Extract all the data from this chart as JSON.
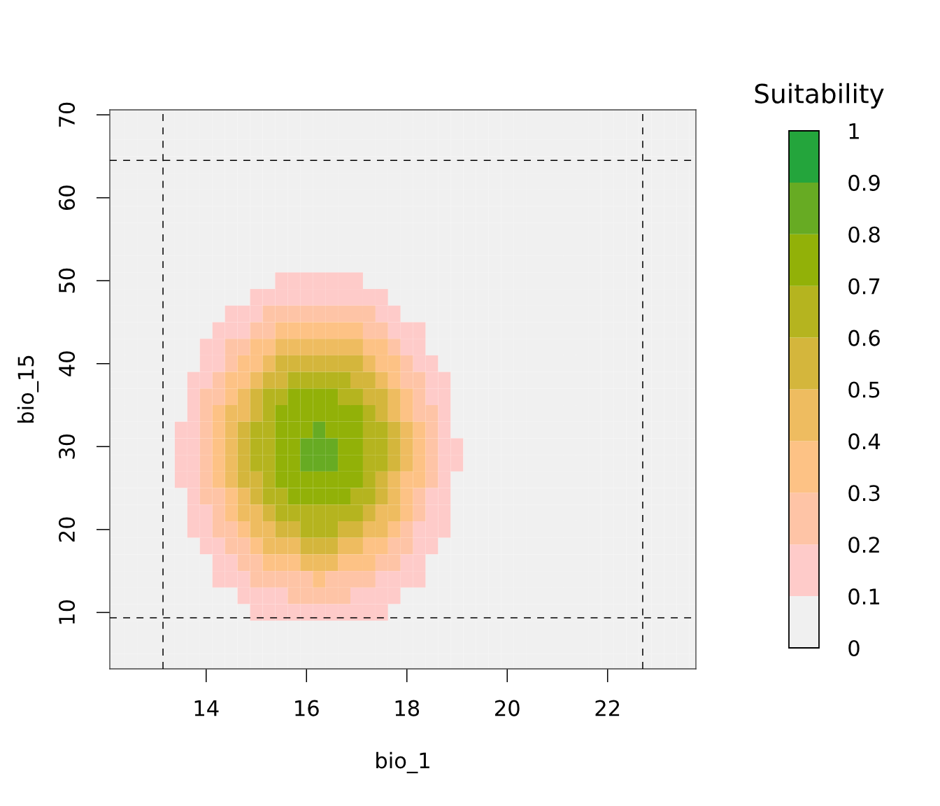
{
  "chart_data": {
    "type": "heatmap",
    "xlabel": "bio_1",
    "ylabel": "bio_15",
    "clabel": "Suitability",
    "xlim": [
      12.08,
      23.76
    ],
    "ylim": [
      3.2,
      70.6
    ],
    "xticks": [
      14,
      16,
      18,
      20,
      22
    ],
    "yticks": [
      10,
      20,
      30,
      40,
      50,
      60,
      70
    ],
    "clim": [
      0,
      1
    ],
    "cticks": [
      0,
      0.1,
      0.2,
      0.3,
      0.4,
      0.5,
      0.6,
      0.7,
      0.8,
      0.9,
      1
    ],
    "colors": [
      "#f0f0f0",
      "#fecbc9",
      "#fec4a6",
      "#fdc285",
      "#eebc60",
      "#d4b63c",
      "#b5b41f",
      "#92b108",
      "#67ab23",
      "#24a53c"
    ],
    "ref_lines": [
      {
        "axis": "x",
        "value": 13.14,
        "line_style": "dashed",
        "color": "#000000"
      },
      {
        "axis": "x",
        "value": 22.7,
        "line_style": "dashed",
        "color": "#000000"
      },
      {
        "axis": "y",
        "value": 64.5,
        "line_style": "dashed",
        "color": "#000000"
      },
      {
        "axis": "y",
        "value": 9.35,
        "line_style": "dashed",
        "color": "#000000"
      }
    ],
    "x": [
      12.25,
      12.5,
      12.75,
      13.0,
      13.25,
      13.5,
      13.75,
      14.0,
      14.25,
      14.5,
      14.75,
      15.0,
      15.25,
      15.5,
      15.75,
      16.0,
      16.25,
      16.5,
      16.75,
      17.0,
      17.25,
      17.5,
      17.75,
      18.0,
      18.25,
      18.5,
      18.75,
      19.0,
      19.25,
      19.5,
      19.75,
      20.0,
      20.25,
      20.5,
      20.75,
      21.0,
      21.25,
      21.5,
      21.75,
      22.0,
      22.25,
      22.5,
      22.75,
      23.0,
      23.25,
      23.5,
      23.75
    ],
    "y": [
      70,
      68,
      66,
      64,
      62,
      60,
      58,
      56,
      54,
      52,
      50,
      48,
      46,
      44,
      42,
      40,
      38,
      36,
      34,
      32,
      30,
      28,
      26,
      24,
      22,
      20,
      18,
      16,
      14,
      12,
      10,
      8,
      6,
      4
    ],
    "cells": [
      [
        0.05,
        0.05,
        0.05,
        0.05,
        0.05,
        0.05,
        0.05,
        0.05,
        0.05,
        0.05,
        0.05,
        0.05,
        0.05,
        0.05,
        0.05,
        0.05,
        0.05,
        0.05,
        0.05,
        0.05,
        0.05,
        0.05,
        0.05,
        0.05,
        0.05,
        0.05,
        0.05,
        0.05,
        0.05,
        0.05,
        0.05,
        0.05,
        0.05,
        0.05,
        0.05,
        0.05,
        0.05,
        0.05,
        0.05,
        0.05,
        0.05,
        0.05,
        0.05,
        0.05,
        0.05,
        0.05,
        0.05
      ],
      [
        0.05,
        0.05,
        0.05,
        0.05,
        0.05,
        0.05,
        0.05,
        0.05,
        0.05,
        0.05,
        0.05,
        0.05,
        0.05,
        0.05,
        0.05,
        0.05,
        0.05,
        0.05,
        0.05,
        0.05,
        0.05,
        0.05,
        0.05,
        0.05,
        0.05,
        0.05,
        0.05,
        0.05,
        0.05,
        0.05,
        0.05,
        0.05,
        0.05,
        0.05,
        0.05,
        0.05,
        0.05,
        0.05,
        0.05,
        0.05,
        0.05,
        0.05,
        0.05,
        0.05,
        0.05,
        0.05,
        0.05
      ],
      [
        0.05,
        0.05,
        0.05,
        0.05,
        0.05,
        0.05,
        0.05,
        0.05,
        0.05,
        0.05,
        0.05,
        0.05,
        0.05,
        0.05,
        0.05,
        0.05,
        0.05,
        0.05,
        0.05,
        0.05,
        0.05,
        0.05,
        0.05,
        0.05,
        0.05,
        0.05,
        0.05,
        0.05,
        0.05,
        0.05,
        0.05,
        0.05,
        0.05,
        0.05,
        0.05,
        0.05,
        0.05,
        0.05,
        0.05,
        0.05,
        0.05,
        0.05,
        0.05,
        0.05,
        0.05,
        0.05,
        0.05
      ],
      [
        0.05,
        0.05,
        0.05,
        0.05,
        0.05,
        0.05,
        0.05,
        0.05,
        0.05,
        0.05,
        0.05,
        0.05,
        0.05,
        0.05,
        0.05,
        0.05,
        0.05,
        0.05,
        0.05,
        0.05,
        0.05,
        0.05,
        0.05,
        0.05,
        0.05,
        0.05,
        0.05,
        0.05,
        0.05,
        0.05,
        0.05,
        0.05,
        0.05,
        0.05,
        0.05,
        0.05,
        0.05,
        0.05,
        0.05,
        0.05,
        0.05,
        0.05,
        0.05,
        0.05,
        0.05,
        0.05,
        0.05
      ],
      [
        0.05,
        0.05,
        0.05,
        0.05,
        0.05,
        0.05,
        0.05,
        0.05,
        0.05,
        0.05,
        0.05,
        0.05,
        0.05,
        0.05,
        0.05,
        0.05,
        0.05,
        0.05,
        0.05,
        0.05,
        0.05,
        0.05,
        0.05,
        0.05,
        0.05,
        0.05,
        0.05,
        0.05,
        0.05,
        0.05,
        0.05,
        0.05,
        0.05,
        0.05,
        0.05,
        0.05,
        0.05,
        0.05,
        0.05,
        0.05,
        0.05,
        0.05,
        0.05,
        0.05,
        0.05,
        0.05,
        0.05
      ],
      [
        0.05,
        0.05,
        0.05,
        0.05,
        0.05,
        0.05,
        0.05,
        0.05,
        0.05,
        0.05,
        0.05,
        0.05,
        0.05,
        0.05,
        0.05,
        0.05,
        0.05,
        0.05,
        0.05,
        0.05,
        0.05,
        0.05,
        0.05,
        0.05,
        0.05,
        0.05,
        0.05,
        0.05,
        0.05,
        0.05,
        0.05,
        0.05,
        0.05,
        0.05,
        0.05,
        0.05,
        0.05,
        0.05,
        0.05,
        0.05,
        0.05,
        0.05,
        0.05,
        0.05,
        0.05,
        0.05,
        0.05
      ],
      [
        0.05,
        0.05,
        0.05,
        0.05,
        0.05,
        0.05,
        0.05,
        0.05,
        0.05,
        0.05,
        0.05,
        0.05,
        0.05,
        0.05,
        0.05,
        0.05,
        0.05,
        0.05,
        0.05,
        0.05,
        0.05,
        0.05,
        0.05,
        0.05,
        0.05,
        0.05,
        0.05,
        0.05,
        0.05,
        0.05,
        0.05,
        0.05,
        0.05,
        0.05,
        0.05,
        0.05,
        0.05,
        0.05,
        0.05,
        0.05,
        0.05,
        0.05,
        0.05,
        0.05,
        0.05,
        0.05,
        0.05
      ],
      [
        0.05,
        0.05,
        0.05,
        0.05,
        0.05,
        0.05,
        0.05,
        0.05,
        0.05,
        0.05,
        0.05,
        0.05,
        0.05,
        0.05,
        0.05,
        0.05,
        0.05,
        0.05,
        0.05,
        0.05,
        0.05,
        0.05,
        0.05,
        0.05,
        0.05,
        0.05,
        0.05,
        0.05,
        0.05,
        0.05,
        0.05,
        0.05,
        0.05,
        0.05,
        0.05,
        0.05,
        0.05,
        0.05,
        0.05,
        0.05,
        0.05,
        0.05,
        0.05,
        0.05,
        0.05,
        0.05,
        0.05
      ],
      [
        0.05,
        0.05,
        0.05,
        0.05,
        0.05,
        0.05,
        0.05,
        0.05,
        0.05,
        0.05,
        0.05,
        0.05,
        0.05,
        0.05,
        0.05,
        0.05,
        0.05,
        0.05,
        0.05,
        0.05,
        0.05,
        0.05,
        0.05,
        0.05,
        0.05,
        0.05,
        0.05,
        0.05,
        0.05,
        0.05,
        0.05,
        0.05,
        0.05,
        0.05,
        0.05,
        0.05,
        0.05,
        0.05,
        0.05,
        0.05,
        0.05,
        0.05,
        0.05,
        0.05,
        0.05,
        0.05,
        0.05
      ],
      [
        0.05,
        0.05,
        0.05,
        0.05,
        0.05,
        0.05,
        0.05,
        0.05,
        0.05,
        0.05,
        0.05,
        0.05,
        0.05,
        0.05,
        0.05,
        0.05,
        0.05,
        0.05,
        0.05,
        0.05,
        0.05,
        0.05,
        0.05,
        0.05,
        0.05,
        0.05,
        0.05,
        0.05,
        0.05,
        0.05,
        0.05,
        0.05,
        0.05,
        0.05,
        0.05,
        0.05,
        0.05,
        0.05,
        0.05,
        0.05,
        0.05,
        0.05,
        0.05,
        0.05,
        0.05,
        0.05,
        0.05
      ],
      [
        0.05,
        0.05,
        0.05,
        0.05,
        0.05,
        0.05,
        0.05,
        0.05,
        0.05,
        0.05,
        0.05,
        0.05,
        0.05,
        0.15,
        0.15,
        0.15,
        0.15,
        0.15,
        0.15,
        0.15,
        0.05,
        0.05,
        0.05,
        0.05,
        0.05,
        0.05,
        0.05,
        0.05,
        0.05,
        0.05,
        0.05,
        0.05,
        0.05,
        0.05,
        0.05,
        0.05,
        0.05,
        0.05,
        0.05,
        0.05,
        0.05,
        0.05,
        0.05,
        0.05,
        0.05,
        0.05,
        0.05
      ],
      [
        0.05,
        0.05,
        0.05,
        0.05,
        0.05,
        0.05,
        0.05,
        0.05,
        0.05,
        0.05,
        0.05,
        0.15,
        0.15,
        0.15,
        0.15,
        0.15,
        0.15,
        0.15,
        0.15,
        0.15,
        0.15,
        0.15,
        0.05,
        0.05,
        0.05,
        0.05,
        0.05,
        0.05,
        0.05,
        0.05,
        0.05,
        0.05,
        0.05,
        0.05,
        0.05,
        0.05,
        0.05,
        0.05,
        0.05,
        0.05,
        0.05,
        0.05,
        0.05,
        0.05,
        0.05,
        0.05,
        0.05
      ],
      [
        0.05,
        0.05,
        0.05,
        0.05,
        0.05,
        0.05,
        0.05,
        0.05,
        0.05,
        0.15,
        0.15,
        0.15,
        0.25,
        0.25,
        0.25,
        0.25,
        0.25,
        0.25,
        0.25,
        0.25,
        0.25,
        0.15,
        0.15,
        0.05,
        0.05,
        0.05,
        0.05,
        0.05,
        0.05,
        0.05,
        0.05,
        0.05,
        0.05,
        0.05,
        0.05,
        0.05,
        0.05,
        0.05,
        0.05,
        0.05,
        0.05,
        0.05,
        0.05,
        0.05,
        0.05,
        0.05,
        0.05
      ],
      [
        0.05,
        0.05,
        0.05,
        0.05,
        0.05,
        0.05,
        0.05,
        0.05,
        0.15,
        0.15,
        0.15,
        0.25,
        0.25,
        0.35,
        0.35,
        0.35,
        0.35,
        0.35,
        0.35,
        0.35,
        0.25,
        0.25,
        0.15,
        0.15,
        0.15,
        0.05,
        0.05,
        0.05,
        0.05,
        0.05,
        0.05,
        0.05,
        0.05,
        0.05,
        0.05,
        0.05,
        0.05,
        0.05,
        0.05,
        0.05,
        0.05,
        0.05,
        0.05,
        0.05,
        0.05,
        0.05,
        0.05
      ],
      [
        0.05,
        0.05,
        0.05,
        0.05,
        0.05,
        0.05,
        0.05,
        0.15,
        0.15,
        0.25,
        0.25,
        0.35,
        0.35,
        0.45,
        0.45,
        0.45,
        0.45,
        0.45,
        0.45,
        0.45,
        0.35,
        0.35,
        0.25,
        0.15,
        0.15,
        0.05,
        0.05,
        0.05,
        0.05,
        0.05,
        0.05,
        0.05,
        0.05,
        0.05,
        0.05,
        0.05,
        0.05,
        0.05,
        0.05,
        0.05,
        0.05,
        0.05,
        0.05,
        0.05,
        0.05,
        0.05,
        0.05
      ],
      [
        0.05,
        0.05,
        0.05,
        0.05,
        0.05,
        0.05,
        0.05,
        0.15,
        0.15,
        0.25,
        0.35,
        0.35,
        0.45,
        0.55,
        0.55,
        0.55,
        0.55,
        0.55,
        0.55,
        0.55,
        0.45,
        0.35,
        0.35,
        0.25,
        0.15,
        0.15,
        0.05,
        0.05,
        0.05,
        0.05,
        0.05,
        0.05,
        0.05,
        0.05,
        0.05,
        0.05,
        0.05,
        0.05,
        0.05,
        0.05,
        0.05,
        0.05,
        0.05,
        0.05,
        0.05,
        0.05,
        0.05
      ],
      [
        0.05,
        0.05,
        0.05,
        0.05,
        0.05,
        0.05,
        0.15,
        0.15,
        0.25,
        0.35,
        0.35,
        0.45,
        0.55,
        0.55,
        0.65,
        0.65,
        0.65,
        0.65,
        0.65,
        0.55,
        0.55,
        0.45,
        0.35,
        0.25,
        0.25,
        0.15,
        0.15,
        0.05,
        0.05,
        0.05,
        0.05,
        0.05,
        0.05,
        0.05,
        0.05,
        0.05,
        0.05,
        0.05,
        0.05,
        0.05,
        0.05,
        0.05,
        0.05,
        0.05,
        0.05,
        0.05,
        0.05
      ],
      [
        0.05,
        0.05,
        0.05,
        0.05,
        0.05,
        0.05,
        0.15,
        0.25,
        0.25,
        0.35,
        0.45,
        0.55,
        0.65,
        0.65,
        0.75,
        0.75,
        0.75,
        0.75,
        0.65,
        0.65,
        0.55,
        0.55,
        0.45,
        0.35,
        0.25,
        0.15,
        0.15,
        0.05,
        0.05,
        0.05,
        0.05,
        0.05,
        0.05,
        0.05,
        0.05,
        0.05,
        0.05,
        0.05,
        0.05,
        0.05,
        0.05,
        0.05,
        0.05,
        0.05,
        0.05,
        0.05,
        0.05
      ],
      [
        0.05,
        0.05,
        0.05,
        0.05,
        0.05,
        0.05,
        0.15,
        0.25,
        0.35,
        0.45,
        0.45,
        0.55,
        0.65,
        0.75,
        0.75,
        0.75,
        0.75,
        0.75,
        0.75,
        0.75,
        0.65,
        0.55,
        0.45,
        0.35,
        0.25,
        0.25,
        0.15,
        0.05,
        0.05,
        0.05,
        0.05,
        0.05,
        0.05,
        0.05,
        0.05,
        0.05,
        0.05,
        0.05,
        0.05,
        0.05,
        0.05,
        0.05,
        0.05,
        0.05,
        0.05,
        0.05,
        0.05
      ],
      [
        0.05,
        0.05,
        0.05,
        0.05,
        0.05,
        0.15,
        0.15,
        0.25,
        0.35,
        0.45,
        0.55,
        0.65,
        0.65,
        0.75,
        0.75,
        0.75,
        0.85,
        0.75,
        0.75,
        0.75,
        0.65,
        0.65,
        0.55,
        0.45,
        0.35,
        0.25,
        0.15,
        0.05,
        0.05,
        0.05,
        0.05,
        0.05,
        0.05,
        0.05,
        0.05,
        0.05,
        0.05,
        0.05,
        0.05,
        0.05,
        0.05,
        0.05,
        0.05,
        0.05,
        0.05,
        0.05,
        0.05
      ],
      [
        0.05,
        0.05,
        0.05,
        0.05,
        0.05,
        0.15,
        0.15,
        0.25,
        0.35,
        0.45,
        0.55,
        0.65,
        0.65,
        0.75,
        0.75,
        0.85,
        0.85,
        0.85,
        0.75,
        0.75,
        0.65,
        0.65,
        0.55,
        0.45,
        0.35,
        0.25,
        0.15,
        0.15,
        0.05,
        0.05,
        0.05,
        0.05,
        0.05,
        0.05,
        0.05,
        0.05,
        0.05,
        0.05,
        0.05,
        0.05,
        0.05,
        0.05,
        0.05,
        0.05,
        0.05,
        0.05,
        0.05
      ],
      [
        0.05,
        0.05,
        0.05,
        0.05,
        0.05,
        0.15,
        0.15,
        0.25,
        0.35,
        0.45,
        0.55,
        0.65,
        0.65,
        0.75,
        0.75,
        0.85,
        0.85,
        0.85,
        0.75,
        0.75,
        0.65,
        0.65,
        0.55,
        0.45,
        0.35,
        0.25,
        0.15,
        0.15,
        0.05,
        0.05,
        0.05,
        0.05,
        0.05,
        0.05,
        0.05,
        0.05,
        0.05,
        0.05,
        0.05,
        0.05,
        0.05,
        0.05,
        0.05,
        0.05,
        0.05,
        0.05,
        0.05
      ],
      [
        0.05,
        0.05,
        0.05,
        0.05,
        0.05,
        0.15,
        0.15,
        0.25,
        0.35,
        0.45,
        0.55,
        0.55,
        0.65,
        0.75,
        0.75,
        0.75,
        0.75,
        0.75,
        0.75,
        0.75,
        0.65,
        0.55,
        0.45,
        0.35,
        0.35,
        0.25,
        0.15,
        0.05,
        0.05,
        0.05,
        0.05,
        0.05,
        0.05,
        0.05,
        0.05,
        0.05,
        0.05,
        0.05,
        0.05,
        0.05,
        0.05,
        0.05,
        0.05,
        0.05,
        0.05,
        0.05,
        0.05
      ],
      [
        0.05,
        0.05,
        0.05,
        0.05,
        0.05,
        0.05,
        0.15,
        0.25,
        0.25,
        0.35,
        0.45,
        0.55,
        0.65,
        0.65,
        0.75,
        0.75,
        0.75,
        0.75,
        0.75,
        0.65,
        0.65,
        0.55,
        0.45,
        0.35,
        0.25,
        0.15,
        0.15,
        0.05,
        0.05,
        0.05,
        0.05,
        0.05,
        0.05,
        0.05,
        0.05,
        0.05,
        0.05,
        0.05,
        0.05,
        0.05,
        0.05,
        0.05,
        0.05,
        0.05,
        0.05,
        0.05,
        0.05
      ],
      [
        0.05,
        0.05,
        0.05,
        0.05,
        0.05,
        0.05,
        0.15,
        0.15,
        0.25,
        0.35,
        0.45,
        0.45,
        0.55,
        0.65,
        0.65,
        0.65,
        0.65,
        0.65,
        0.65,
        0.65,
        0.55,
        0.45,
        0.45,
        0.35,
        0.25,
        0.15,
        0.15,
        0.05,
        0.05,
        0.05,
        0.05,
        0.05,
        0.05,
        0.05,
        0.05,
        0.05,
        0.05,
        0.05,
        0.05,
        0.05,
        0.05,
        0.05,
        0.05,
        0.05,
        0.05,
        0.05,
        0.05
      ],
      [
        0.05,
        0.05,
        0.05,
        0.05,
        0.05,
        0.05,
        0.15,
        0.15,
        0.25,
        0.25,
        0.35,
        0.45,
        0.45,
        0.55,
        0.55,
        0.65,
        0.65,
        0.65,
        0.55,
        0.55,
        0.45,
        0.45,
        0.35,
        0.25,
        0.15,
        0.15,
        0.15,
        0.05,
        0.05,
        0.05,
        0.05,
        0.05,
        0.05,
        0.05,
        0.05,
        0.05,
        0.05,
        0.05,
        0.05,
        0.05,
        0.05,
        0.05,
        0.05,
        0.05,
        0.05,
        0.05,
        0.05
      ],
      [
        0.05,
        0.05,
        0.05,
        0.05,
        0.05,
        0.05,
        0.05,
        0.15,
        0.15,
        0.25,
        0.25,
        0.35,
        0.45,
        0.45,
        0.45,
        0.55,
        0.55,
        0.55,
        0.45,
        0.45,
        0.35,
        0.35,
        0.25,
        0.25,
        0.15,
        0.15,
        0.05,
        0.05,
        0.05,
        0.05,
        0.05,
        0.05,
        0.05,
        0.05,
        0.05,
        0.05,
        0.05,
        0.05,
        0.05,
        0.05,
        0.05,
        0.05,
        0.05,
        0.05,
        0.05,
        0.05,
        0.05
      ],
      [
        0.05,
        0.05,
        0.05,
        0.05,
        0.05,
        0.05,
        0.05,
        0.05,
        0.15,
        0.15,
        0.25,
        0.25,
        0.35,
        0.35,
        0.35,
        0.45,
        0.45,
        0.45,
        0.35,
        0.35,
        0.35,
        0.25,
        0.25,
        0.15,
        0.15,
        0.05,
        0.05,
        0.05,
        0.05,
        0.05,
        0.05,
        0.05,
        0.05,
        0.05,
        0.05,
        0.05,
        0.05,
        0.05,
        0.05,
        0.05,
        0.05,
        0.05,
        0.05,
        0.05,
        0.05,
        0.05,
        0.05
      ],
      [
        0.05,
        0.05,
        0.05,
        0.05,
        0.05,
        0.05,
        0.05,
        0.05,
        0.15,
        0.15,
        0.15,
        0.25,
        0.25,
        0.25,
        0.25,
        0.25,
        0.35,
        0.25,
        0.25,
        0.25,
        0.25,
        0.15,
        0.15,
        0.15,
        0.15,
        0.05,
        0.05,
        0.05,
        0.05,
        0.05,
        0.05,
        0.05,
        0.05,
        0.05,
        0.05,
        0.05,
        0.05,
        0.05,
        0.05,
        0.05,
        0.05,
        0.05,
        0.05,
        0.05,
        0.05,
        0.05,
        0.05
      ],
      [
        0.05,
        0.05,
        0.05,
        0.05,
        0.05,
        0.05,
        0.05,
        0.05,
        0.05,
        0.05,
        0.15,
        0.15,
        0.15,
        0.15,
        0.25,
        0.25,
        0.25,
        0.25,
        0.25,
        0.15,
        0.15,
        0.15,
        0.15,
        0.05,
        0.05,
        0.05,
        0.05,
        0.05,
        0.05,
        0.05,
        0.05,
        0.05,
        0.05,
        0.05,
        0.05,
        0.05,
        0.05,
        0.05,
        0.05,
        0.05,
        0.05,
        0.05,
        0.05,
        0.05,
        0.05,
        0.05,
        0.05
      ],
      [
        0.05,
        0.05,
        0.05,
        0.05,
        0.05,
        0.05,
        0.05,
        0.05,
        0.05,
        0.05,
        0.05,
        0.15,
        0.15,
        0.15,
        0.15,
        0.15,
        0.15,
        0.15,
        0.15,
        0.15,
        0.15,
        0.15,
        0.05,
        0.05,
        0.05,
        0.05,
        0.05,
        0.05,
        0.05,
        0.05,
        0.05,
        0.05,
        0.05,
        0.05,
        0.05,
        0.05,
        0.05,
        0.05,
        0.05,
        0.05,
        0.05,
        0.05,
        0.05,
        0.05,
        0.05,
        0.05,
        0.05
      ],
      [
        0.05,
        0.05,
        0.05,
        0.05,
        0.05,
        0.05,
        0.05,
        0.05,
        0.05,
        0.05,
        0.05,
        0.05,
        0.05,
        0.05,
        0.05,
        0.05,
        0.05,
        0.05,
        0.05,
        0.05,
        0.05,
        0.05,
        0.05,
        0.05,
        0.05,
        0.05,
        0.05,
        0.05,
        0.05,
        0.05,
        0.05,
        0.05,
        0.05,
        0.05,
        0.05,
        0.05,
        0.05,
        0.05,
        0.05,
        0.05,
        0.05,
        0.05,
        0.05,
        0.05,
        0.05,
        0.05,
        0.05
      ],
      [
        0.05,
        0.05,
        0.05,
        0.05,
        0.05,
        0.05,
        0.05,
        0.05,
        0.05,
        0.05,
        0.05,
        0.05,
        0.05,
        0.05,
        0.05,
        0.05,
        0.05,
        0.05,
        0.05,
        0.05,
        0.05,
        0.05,
        0.05,
        0.05,
        0.05,
        0.05,
        0.05,
        0.05,
        0.05,
        0.05,
        0.05,
        0.05,
        0.05,
        0.05,
        0.05,
        0.05,
        0.05,
        0.05,
        0.05,
        0.05,
        0.05,
        0.05,
        0.05,
        0.05,
        0.05,
        0.05,
        0.05
      ],
      [
        0.05,
        0.05,
        0.05,
        0.05,
        0.05,
        0.05,
        0.05,
        0.05,
        0.05,
        0.05,
        0.05,
        0.05,
        0.05,
        0.05,
        0.05,
        0.05,
        0.05,
        0.05,
        0.05,
        0.05,
        0.05,
        0.05,
        0.05,
        0.05,
        0.05,
        0.05,
        0.05,
        0.05,
        0.05,
        0.05,
        0.05,
        0.05,
        0.05,
        0.05,
        0.05,
        0.05,
        0.05,
        0.05,
        0.05,
        0.05,
        0.05,
        0.05,
        0.05,
        0.05,
        0.05,
        0.05,
        0.05
      ]
    ]
  }
}
